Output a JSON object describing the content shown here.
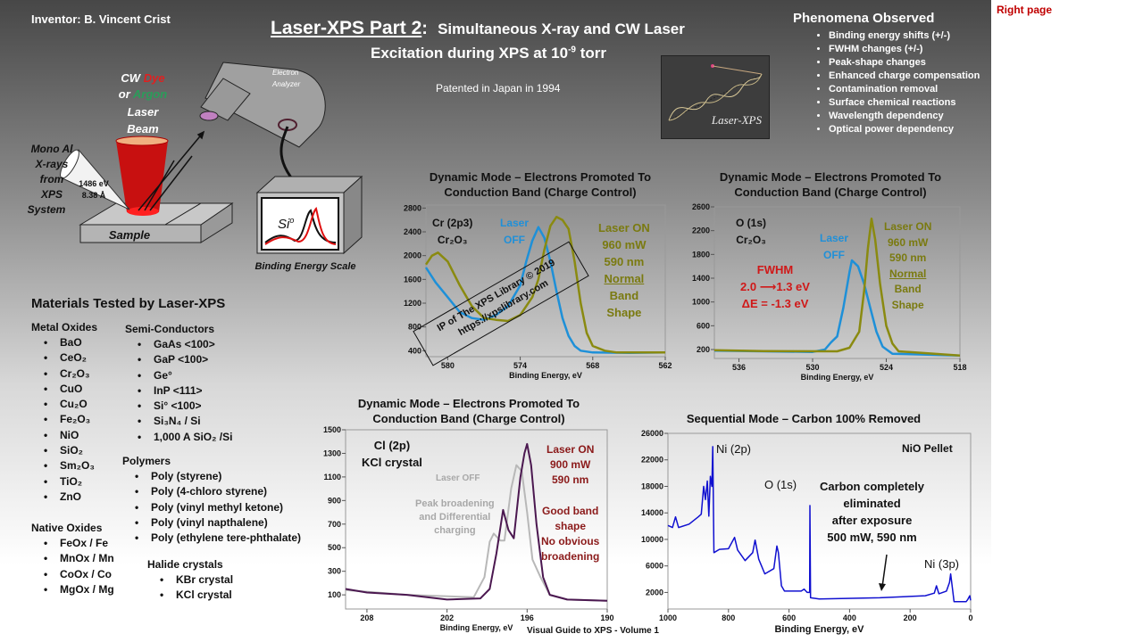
{
  "header": {
    "inventor": "Inventor:  B. Vincent Crist",
    "title_main": "Laser-XPS  Part 2",
    "title_colon": ":",
    "title_sub": "Simultaneous X-ray and CW Laser",
    "title_line2": "Excitation during XPS at 10",
    "title_exp": "-9",
    "title_end": " torr",
    "patent": "Patented in Japan in 1994",
    "logo_text": "Laser-XPS",
    "right_page": "Right page"
  },
  "phenomena": {
    "title": "Phenomena Observed",
    "items": [
      "Binding energy shifts (+/-)",
      "FWHM changes  (+/-)",
      "Peak-shape changes",
      "Enhanced charge compensation",
      "Contamination removal",
      "Surface chemical reactions",
      "Wavelength dependency",
      "Optical power dependency"
    ]
  },
  "diagram": {
    "laser_label_cw": "CW ",
    "laser_label_dye": "Dye",
    "laser_label_or": "or ",
    "laser_label_argon": "Argon",
    "laser_label_laser": "Laser",
    "laser_label_beam": "Beam",
    "xray_label": [
      "Mono Al",
      "X-rays",
      "from",
      "XPS",
      "System"
    ],
    "xray_energy": "1486 eV",
    "xray_wavelength": "8.38 Å",
    "sample": "Sample",
    "analyzer": [
      "Electron",
      "Analyzer"
    ],
    "screen_label": "Si",
    "screen_sup": "o",
    "scale_label": "Binding Energy Scale",
    "colors": {
      "dye": "#e02020",
      "argon": "#2a9d5a",
      "beam": "#cc1010"
    }
  },
  "materials": {
    "title": "Materials Tested by Laser-XPS",
    "metal_oxides": {
      "title": "Metal Oxides",
      "items": [
        "BaO",
        "CeO₂",
        "Cr₂O₃",
        "CuO",
        "Cu₂O",
        "Fe₂O₃",
        "NiO",
        "SiO₂",
        "Sm₂O₃",
        "TiO₂",
        "ZnO"
      ]
    },
    "native_oxides": {
      "title": "Native Oxides",
      "items": [
        "FeOx / Fe",
        "MnOx / Mn",
        "CoOx / Co",
        "MgOx / Mg"
      ]
    },
    "semiconductors": {
      "title": "Semi-Conductors",
      "items": [
        "GaAs <100>",
        "GaP <100>",
        "Ge°",
        "InP <111>",
        "Si° <100>",
        "Si₃N₄ / Si",
        "1,000 A SiO₂ /Si"
      ]
    },
    "polymers": {
      "title": "Polymers",
      "items": [
        "Poly (styrene)",
        "Poly (4-chloro styrene)",
        "Poly (vinyl methyl ketone)",
        "Poly (vinyl napthalene)",
        "Poly (ethylene tere-phthalate)"
      ]
    },
    "halides": {
      "title": "Halide crystals",
      "items": [
        "KBr crystal",
        "KCl crystal"
      ]
    }
  },
  "watermark": {
    "line1": "IP of The XPS Library © 2019",
    "line2": "https://xpslibrary.com"
  },
  "footer": "Visual Guide to XPS - Volume 1",
  "chart_data": [
    {
      "type": "line",
      "title": [
        "Dynamic Mode –  Electrons Promoted To",
        "Conduction Band (Charge Control)"
      ],
      "xlabel": "Binding Energy, eV",
      "xlim": [
        581.8,
        562
      ],
      "ylim": [
        300,
        2850
      ],
      "xticks": [
        580,
        574,
        568,
        562
      ],
      "yticks": [
        400,
        800,
        1200,
        1600,
        2000,
        2400,
        2800
      ],
      "annotations": {
        "sample": [
          "Cr (2p3)",
          "Cr₂O₃"
        ],
        "off": [
          "Laser",
          "OFF"
        ],
        "on": [
          "Laser ON",
          "960 mW",
          "590 nm",
          "Normal",
          "Band",
          "Shape"
        ]
      },
      "series": [
        {
          "name": "Laser OFF",
          "color": "#1e90d8",
          "points": [
            [
              581.8,
              1800
            ],
            [
              581,
              1550
            ],
            [
              580,
              1300
            ],
            [
              579,
              1050
            ],
            [
              578,
              950
            ],
            [
              577,
              920
            ],
            [
              576,
              1000
            ],
            [
              575,
              1150
            ],
            [
              574,
              1500
            ],
            [
              573.5,
              1900
            ],
            [
              573,
              2250
            ],
            [
              572.5,
              2480
            ],
            [
              572,
              2300
            ],
            [
              571.5,
              1900
            ],
            [
              571,
              1400
            ],
            [
              570.5,
              950
            ],
            [
              570,
              650
            ],
            [
              569.5,
              480
            ],
            [
              569,
              400
            ],
            [
              568,
              370
            ],
            [
              565,
              365
            ],
            [
              562,
              370
            ]
          ]
        },
        {
          "name": "Laser ON",
          "color": "#8a8a10",
          "points": [
            [
              581.8,
              1850
            ],
            [
              581.3,
              2000
            ],
            [
              580.8,
              2050
            ],
            [
              580,
              1900
            ],
            [
              579,
              1500
            ],
            [
              578,
              1150
            ],
            [
              577,
              950
            ],
            [
              576,
              920
            ],
            [
              575,
              900
            ],
            [
              574,
              1000
            ],
            [
              573,
              1300
            ],
            [
              572.5,
              1600
            ],
            [
              572,
              2100
            ],
            [
              571.5,
              2500
            ],
            [
              571,
              2650
            ],
            [
              570.5,
              2600
            ],
            [
              570,
              2450
            ],
            [
              569.5,
              1900
            ],
            [
              569,
              1200
            ],
            [
              568.5,
              700
            ],
            [
              568,
              480
            ],
            [
              567,
              400
            ],
            [
              566,
              370
            ],
            [
              562,
              370
            ]
          ]
        }
      ]
    },
    {
      "type": "line",
      "title": [
        "Dynamic Mode –  Electrons Promoted To",
        "Conduction Band (Charge Control)"
      ],
      "xlabel": "Binding Energy, eV",
      "xlim": [
        538,
        518
      ],
      "ylim": [
        50,
        2600
      ],
      "xticks": [
        536,
        530,
        524,
        518
      ],
      "yticks": [
        200,
        600,
        1000,
        1400,
        1800,
        2200,
        2600
      ],
      "annotations": {
        "sample": [
          "O (1s)",
          "Cr₂O₃"
        ],
        "off": [
          "Laser",
          "OFF"
        ],
        "on": [
          "Laser ON",
          "960 mW",
          "590 nm",
          "Normal",
          "Band",
          "Shape"
        ],
        "fwhm": [
          "FWHM",
          "2.0 ⟶1.3 eV",
          "ΔE = -1.3 eV"
        ]
      },
      "series": [
        {
          "name": "Laser OFF",
          "color": "#1e90d8",
          "points": [
            [
              538,
              180
            ],
            [
              534,
              170
            ],
            [
              530,
              160
            ],
            [
              529,
              200
            ],
            [
              528.5,
              320
            ],
            [
              528,
              420
            ],
            [
              527.5,
              900
            ],
            [
              527,
              1500
            ],
            [
              526.8,
              1700
            ],
            [
              526.3,
              1600
            ],
            [
              525.8,
              1300
            ],
            [
              525.3,
              900
            ],
            [
              524.8,
              500
            ],
            [
              524.3,
              250
            ],
            [
              523.5,
              130
            ],
            [
              518,
              100
            ]
          ]
        },
        {
          "name": "Laser ON",
          "color": "#8a8a10",
          "points": [
            [
              538,
              190
            ],
            [
              534,
              175
            ],
            [
              528,
              170
            ],
            [
              527,
              230
            ],
            [
              526.2,
              500
            ],
            [
              525.8,
              1200
            ],
            [
              525.5,
              1900
            ],
            [
              525.2,
              2400
            ],
            [
              524.9,
              2050
            ],
            [
              524.5,
              1300
            ],
            [
              524,
              600
            ],
            [
              523.5,
              300
            ],
            [
              523,
              170
            ],
            [
              518,
              100
            ]
          ]
        }
      ]
    },
    {
      "type": "line",
      "title": [
        "Dynamic Mode –  Electrons Promoted To",
        "Conduction Band (Charge Control)"
      ],
      "xlabel": "Binding Energy, eV",
      "xlim": [
        209.6,
        190
      ],
      "ylim": [
        -20,
        1500
      ],
      "xticks": [
        208,
        202,
        196,
        190
      ],
      "yticks": [
        100,
        300,
        500,
        700,
        900,
        1100,
        1300,
        1500
      ],
      "annotations": {
        "sample": [
          "Cl (2p)",
          "KCl crystal"
        ],
        "off": [
          "Laser OFF"
        ],
        "broad": [
          "Peak broadening",
          "and Differential",
          "charging"
        ],
        "on": [
          "Laser ON",
          "900 mW",
          "590 nm"
        ],
        "good": [
          "Good band",
          "shape",
          "No obvious",
          "broadening"
        ]
      },
      "series": [
        {
          "name": "Laser OFF",
          "color": "#b8b8b8",
          "points": [
            [
              209.6,
              140
            ],
            [
              205,
              100
            ],
            [
              200,
              80
            ],
            [
              199.2,
              250
            ],
            [
              198.8,
              550
            ],
            [
              198.5,
              620
            ],
            [
              198,
              560
            ],
            [
              197.7,
              560
            ],
            [
              197.2,
              1000
            ],
            [
              196.8,
              1200
            ],
            [
              196.4,
              1150
            ],
            [
              196,
              800
            ],
            [
              195.6,
              400
            ],
            [
              195,
              250
            ],
            [
              194.3,
              100
            ],
            [
              193,
              60
            ],
            [
              190,
              50
            ]
          ]
        },
        {
          "name": "Laser ON",
          "color": "#4b1850",
          "points": [
            [
              209.6,
              150
            ],
            [
              208,
              120
            ],
            [
              205,
              100
            ],
            [
              202,
              60
            ],
            [
              199.5,
              70
            ],
            [
              198.8,
              150
            ],
            [
              198.3,
              450
            ],
            [
              197.8,
              820
            ],
            [
              197.4,
              650
            ],
            [
              197,
              580
            ],
            [
              196.5,
              1100
            ],
            [
              196.2,
              1300
            ],
            [
              196,
              1380
            ],
            [
              195.7,
              1200
            ],
            [
              195.3,
              700
            ],
            [
              194.8,
              250
            ],
            [
              194.3,
              100
            ],
            [
              193,
              60
            ],
            [
              190,
              50
            ]
          ]
        }
      ]
    },
    {
      "type": "line",
      "title": [
        "Sequential Mode – Carbon 100%  Removed"
      ],
      "xlabel": "Binding Energy, eV",
      "xlim": [
        1000,
        0
      ],
      "ylim": [
        -500,
        26000
      ],
      "xticks": [
        1000,
        800,
        600,
        400,
        200,
        0
      ],
      "yticks": [
        2000,
        6000,
        10000,
        14000,
        18000,
        22000,
        26000
      ],
      "annotations": {
        "ni2p": "Ni (2p)",
        "o1s": "O (1s)",
        "ni3p": "Ni (3p)",
        "sample": "NiO Pellet",
        "carbon": [
          "Carbon completely",
          "eliminated",
          "after exposure",
          "500 mW, 590 nm"
        ]
      },
      "series": [
        {
          "color": "#1010d0",
          "points": [
            [
              1000,
              12100
            ],
            [
              985,
              11800
            ],
            [
              975,
              13400
            ],
            [
              965,
              11800
            ],
            [
              930,
              12300
            ],
            [
              900,
              13400
            ],
            [
              890,
              13800
            ],
            [
              882,
              18000
            ],
            [
              876,
              16000
            ],
            [
              870,
              18800
            ],
            [
              865,
              13500
            ],
            [
              860,
              19500
            ],
            [
              855,
              18000
            ],
            [
              852,
              24000
            ],
            [
              848,
              8000
            ],
            [
              830,
              8500
            ],
            [
              800,
              8600
            ],
            [
              780,
              10300
            ],
            [
              770,
              8400
            ],
            [
              745,
              6800
            ],
            [
              720,
              8000
            ],
            [
              712,
              9900
            ],
            [
              700,
              7000
            ],
            [
              680,
              4800
            ],
            [
              650,
              5600
            ],
            [
              640,
              9000
            ],
            [
              635,
              8000
            ],
            [
              625,
              3000
            ],
            [
              615,
              2200
            ],
            [
              560,
              2200
            ],
            [
              550,
              2500
            ],
            [
              540,
              2000
            ],
            [
              532,
              2000
            ],
            [
              531,
              15100
            ],
            [
              529,
              1200
            ],
            [
              500,
              1000
            ],
            [
              300,
              1200
            ],
            [
              150,
              1500
            ],
            [
              120,
              1900
            ],
            [
              113,
              3000
            ],
            [
              105,
              1800
            ],
            [
              80,
              2200
            ],
            [
              70,
              3500
            ],
            [
              66,
              4800
            ],
            [
              60,
              2500
            ],
            [
              55,
              600
            ],
            [
              15,
              600
            ],
            [
              10,
              900
            ],
            [
              3,
              1500
            ],
            [
              0,
              800
            ]
          ]
        }
      ]
    }
  ]
}
